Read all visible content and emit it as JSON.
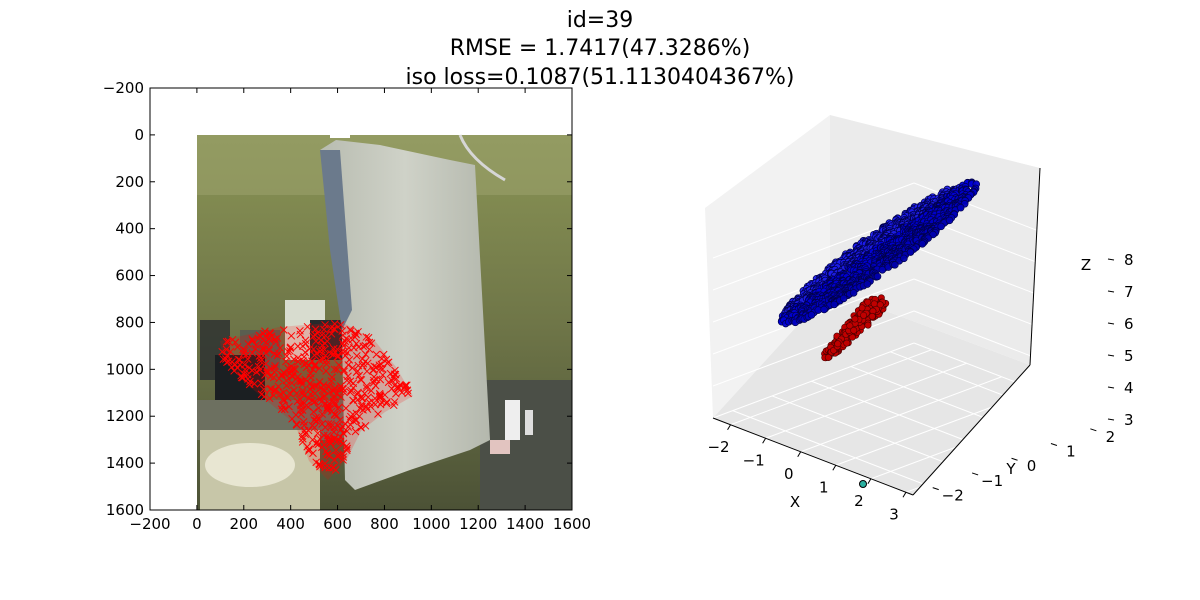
{
  "figure": {
    "title_lines": [
      "id=39",
      "RMSE = 1.7417(47.3286%)",
      "iso loss=0.1087(51.1130404367%)"
    ]
  },
  "chart_data": [
    {
      "type": "scatter",
      "subtype": "image-overlay",
      "xlim": [
        -200,
        1600
      ],
      "ylim": [
        1600,
        -200
      ],
      "y_inverted": true,
      "xticks": [
        "−200",
        "0",
        "200",
        "400",
        "600",
        "800",
        "1000",
        "1200",
        "1400",
        "1600"
      ],
      "yticks": [
        "−200",
        "0",
        "200",
        "400",
        "600",
        "800",
        "1000",
        "1200",
        "1400",
        "1600"
      ],
      "background": "photo of a grey pillow hanging in an office",
      "image_extent": {
        "x": [
          0,
          1600
        ],
        "y": [
          0,
          1600
        ]
      },
      "marker": "x",
      "color": "#ff0000",
      "region_polygon": [
        [
          100,
          880
        ],
        [
          350,
          820
        ],
        [
          620,
          800
        ],
        [
          760,
          880
        ],
        [
          850,
          990
        ],
        [
          920,
          1110
        ],
        [
          800,
          1180
        ],
        [
          700,
          1260
        ],
        [
          640,
          1380
        ],
        [
          560,
          1470
        ],
        [
          480,
          1390
        ],
        [
          420,
          1230
        ],
        [
          320,
          1150
        ],
        [
          200,
          1050
        ],
        [
          110,
          960
        ]
      ],
      "grid": false
    },
    {
      "type": "scatter",
      "subtype": "3d",
      "xlabel": "X",
      "ylabel": "Y",
      "zlabel": "Z",
      "xticks": [
        "−2",
        "−1",
        "0",
        "1",
        "2",
        "3"
      ],
      "yticks": [
        "−2",
        "−1",
        "0",
        "1",
        "2"
      ],
      "zticks": [
        "3",
        "4",
        "5",
        "6",
        "7",
        "8"
      ],
      "xlim": [
        -2.5,
        3.2
      ],
      "ylim": [
        -2.5,
        2.6
      ],
      "zlim": [
        3,
        8.5
      ],
      "series": [
        {
          "color": "#0000cc",
          "shape": "ellipsoid",
          "center": [
            -0.2,
            0.5,
            6.3
          ],
          "extent": [
            4.4,
            0.4,
            4.2
          ]
        },
        {
          "color": "#cc0000",
          "shape": "tail",
          "points": [
            [
              0.3,
              0.2,
              5.2
            ],
            [
              0.0,
              0.0,
              4.7
            ],
            [
              -0.3,
              -0.2,
              4.25
            ]
          ]
        },
        {
          "color": "#2ab0a0",
          "shape": "single",
          "points": [
            [
              2.2,
              -2.6,
              2.9
            ]
          ]
        }
      ],
      "pane_color": "#f2f2f2",
      "grid": true
    }
  ]
}
